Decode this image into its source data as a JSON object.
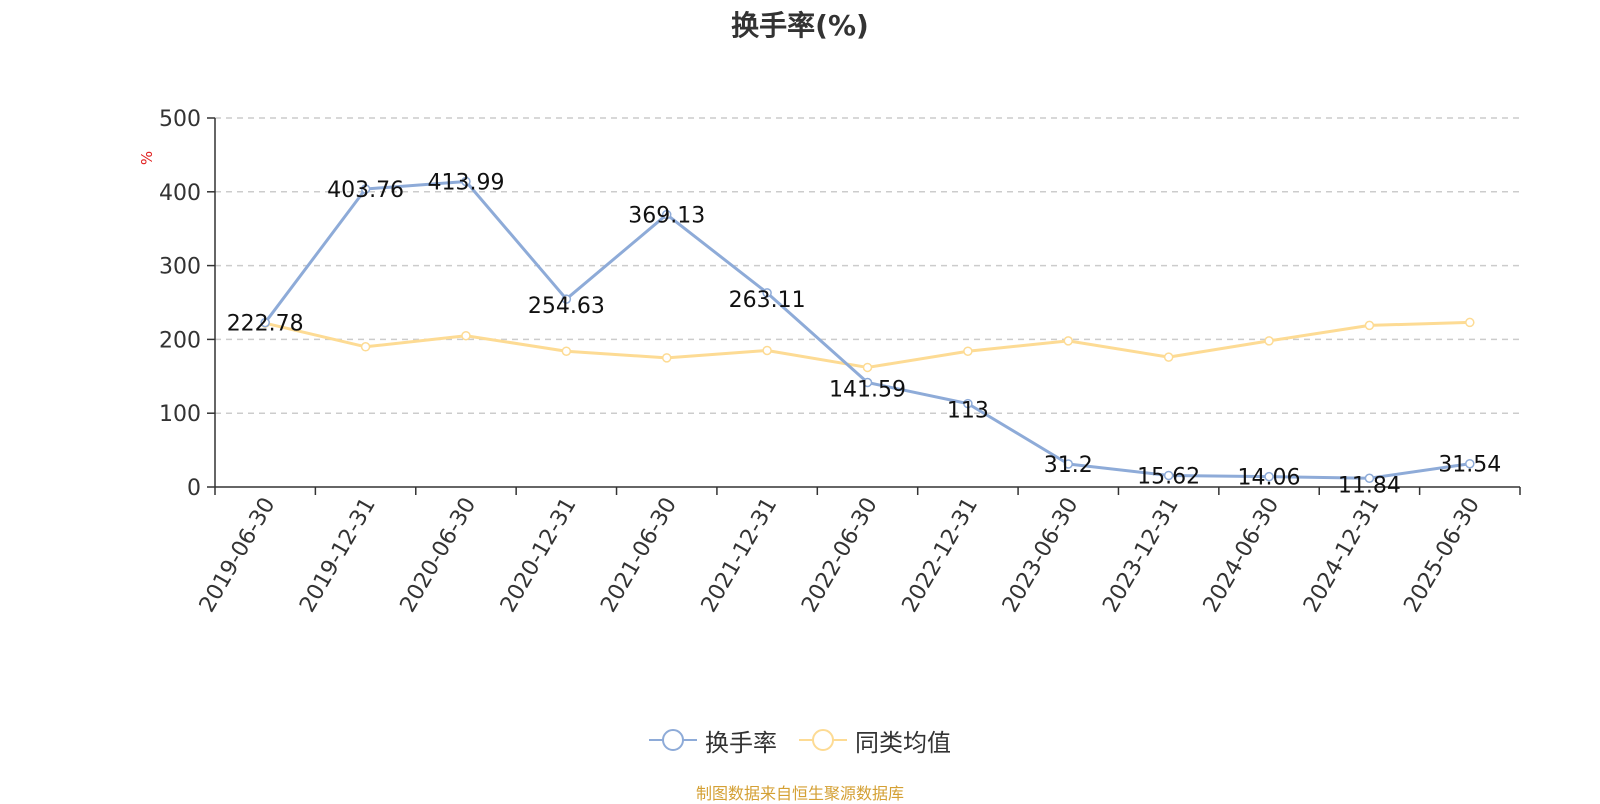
{
  "chart_data": {
    "type": "line",
    "title": "换手率(%)",
    "ylabel": "%",
    "ylim": [
      0,
      500
    ],
    "yticks": [
      0,
      100,
      200,
      300,
      400,
      500
    ],
    "grid": true,
    "legend_position": "bottom",
    "categories": [
      "2019-06-30",
      "2019-12-31",
      "2020-06-30",
      "2020-12-31",
      "2021-06-30",
      "2021-12-31",
      "2022-06-30",
      "2022-12-31",
      "2023-06-30",
      "2023-12-31",
      "2024-06-30",
      "2024-12-31",
      "2025-06-30"
    ],
    "series": [
      {
        "name": "换手率",
        "color": "#8eabd8",
        "values": [
          222.78,
          403.76,
          413.99,
          254.63,
          369.13,
          263.11,
          141.59,
          113,
          31.2,
          15.62,
          14.06,
          11.84,
          31.54
        ],
        "labels": [
          "222.78",
          "403.76",
          "413.99",
          "254.63",
          "369.13",
          "263.11",
          "141.59",
          "113",
          "31.2",
          "15.62",
          "14.06",
          "11.84",
          "31.54"
        ]
      },
      {
        "name": "同类均值",
        "color": "#fddb94",
        "values": [
          222,
          190,
          205,
          184,
          175,
          185,
          162,
          184,
          198,
          176,
          198,
          219,
          223
        ]
      }
    ]
  },
  "legend": {
    "item1": "换手率",
    "item2": "同类均值"
  },
  "footer": {
    "source": "制图数据来自恒生聚源数据库"
  },
  "colors": {
    "ylabel": "#e02020",
    "source": "#d4a034"
  }
}
